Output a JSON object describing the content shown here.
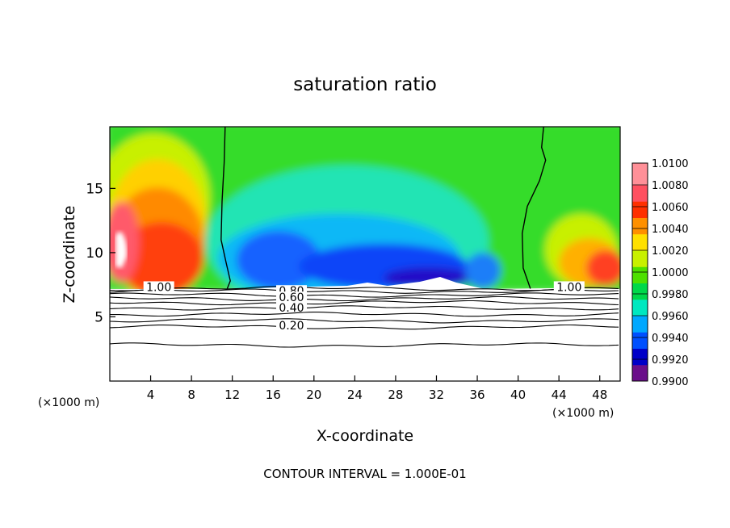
{
  "chart_data": {
    "type": "heatmap",
    "title": "saturation ratio",
    "xlabel": "X-coordinate",
    "ylabel": "Z-coordinate",
    "x_unit_label_left": "(×1000 m)",
    "x_unit_label_right": "(×1000 m)",
    "footer": "CONTOUR INTERVAL = 1.000E-01",
    "xlim": [
      0,
      50
    ],
    "ylim": [
      0,
      19.8
    ],
    "x_ticks": [
      "4",
      "8",
      "12",
      "16",
      "20",
      "24",
      "28",
      "32",
      "36",
      "40",
      "44",
      "48"
    ],
    "x_tick_values": [
      4,
      8,
      12,
      16,
      20,
      24,
      28,
      32,
      36,
      40,
      44,
      48
    ],
    "y_ticks": [
      "5",
      "10",
      "15"
    ],
    "y_tick_values": [
      5,
      10,
      15
    ],
    "colorbar": {
      "range": [
        0.99,
        1.01
      ],
      "labels": [
        "1.0100",
        "1.0080",
        "1.0060",
        "1.0040",
        "1.0020",
        "1.0000",
        "0.9980",
        "0.9960",
        "0.9940",
        "0.9920",
        "0.9900"
      ],
      "label_values": [
        1.01,
        1.008,
        1.006,
        1.004,
        1.002,
        1.0,
        0.998,
        0.996,
        0.994,
        0.992,
        0.99
      ],
      "colors": [
        "#6a0f8a",
        "#0000c8",
        "#0050ff",
        "#00a8ff",
        "#00e8c0",
        "#00d84a",
        "#4ee000",
        "#c8f000",
        "#ffe000",
        "#ff9000",
        "#ff3000",
        "#ff5060",
        "#ff9098"
      ]
    },
    "contour_labels": [
      {
        "text": "1.00",
        "value": 1.0,
        "x": 4.8,
        "z": 7.2
      },
      {
        "text": "1.00",
        "value": 1.0,
        "x": 45.0,
        "z": 7.2
      },
      {
        "text": "0.80",
        "value": 0.8,
        "x": 17.8,
        "z": 6.9
      },
      {
        "text": "0.60",
        "value": 0.6,
        "x": 17.8,
        "z": 6.4
      },
      {
        "text": "0.40",
        "value": 0.4,
        "x": 17.8,
        "z": 5.6
      },
      {
        "text": "0.20",
        "value": 0.2,
        "x": 17.8,
        "z": 4.2
      }
    ],
    "contour_lines": [
      {
        "value": 1.0,
        "z": 7.2
      },
      {
        "value": 0.9,
        "z": 7.0
      },
      {
        "value": 0.8,
        "z": 6.7
      },
      {
        "value": 0.7,
        "z": 6.4
      },
      {
        "value": 0.6,
        "z": 6.1
      },
      {
        "value": 0.5,
        "z": 5.7
      },
      {
        "value": 0.4,
        "z": 5.2
      },
      {
        "value": 0.3,
        "z": 4.7
      },
      {
        "value": 0.2,
        "z": 4.2
      },
      {
        "value": 0.1,
        "z": 2.8
      }
    ],
    "saturation_boundary_left": [
      [
        11.3,
        19.8
      ],
      [
        11.2,
        17
      ],
      [
        11.0,
        14
      ],
      [
        10.9,
        11
      ],
      [
        11.4,
        9.2
      ],
      [
        11.8,
        7.8
      ],
      [
        11.5,
        7.2
      ]
    ],
    "saturation_boundary_right": [
      [
        42.5,
        19.8
      ],
      [
        42.3,
        18.2
      ],
      [
        42.7,
        17.2
      ],
      [
        42.1,
        15.6
      ],
      [
        40.9,
        13.6
      ],
      [
        40.4,
        11.5
      ],
      [
        40.5,
        8.8
      ],
      [
        41.2,
        7.2
      ]
    ]
  }
}
